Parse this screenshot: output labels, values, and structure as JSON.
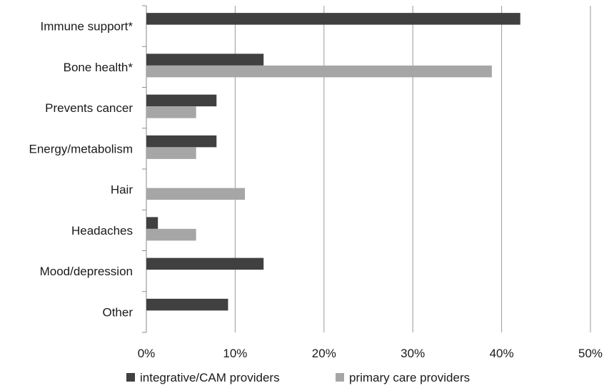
{
  "chart_data": {
    "type": "bar",
    "orientation": "horizontal",
    "categories": [
      "Immune support*",
      "Bone health*",
      "Prevents cancer",
      "Energy/metabolism",
      "Hair",
      "Headaches",
      "Mood/depression",
      "Other"
    ],
    "series": [
      {
        "name": "integrative/CAM providers",
        "color": "#404040",
        "values": [
          42.1,
          13.2,
          7.9,
          7.9,
          0,
          1.3,
          13.2,
          9.2
        ]
      },
      {
        "name": "primary care providers",
        "color": "#a6a6a6",
        "values": [
          0,
          38.9,
          5.6,
          5.6,
          11.1,
          5.6,
          0,
          0
        ]
      }
    ],
    "x_ticks": [
      "0%",
      "10%",
      "20%",
      "30%",
      "40%",
      "50%"
    ],
    "xlim": [
      0,
      50
    ],
    "x_unit": "%",
    "grid": "vertical",
    "legend_position": "bottom",
    "title": "",
    "xlabel": "",
    "ylabel": ""
  }
}
